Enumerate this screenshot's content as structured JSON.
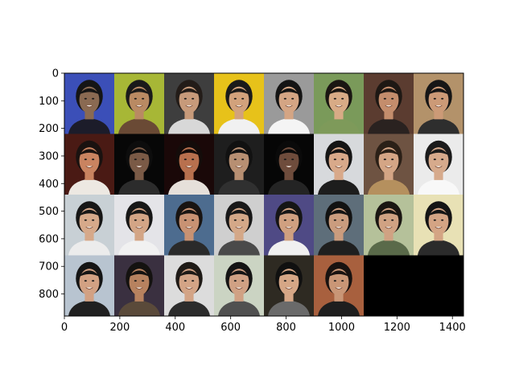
{
  "chart_data": {
    "type": "image",
    "title": "",
    "xlabel": "",
    "ylabel": "",
    "xlim": [
      0,
      1440
    ],
    "ylim": [
      880,
      0
    ],
    "x_ticks": [
      0,
      200,
      400,
      600,
      800,
      1000,
      1200,
      1400
    ],
    "y_ticks": [
      0,
      100,
      200,
      300,
      400,
      500,
      600,
      700,
      800
    ],
    "grid": {
      "rows": 4,
      "cols": 8,
      "tile_width": 180,
      "tile_height": 220,
      "filled_tiles": 30,
      "empty_fill": "#000000"
    },
    "tiles": [
      {
        "row": 0,
        "col": 0,
        "bg": "#3b4fb8",
        "face": "#8a6a52",
        "hair": "#151515",
        "shirt": "#1c1c2a"
      },
      {
        "row": 0,
        "col": 1,
        "bg": "#a7b736",
        "face": "#b98a63",
        "hair": "#1a1a1a",
        "shirt": "#6a4a35"
      },
      {
        "row": 0,
        "col": 2,
        "bg": "#3e3e3e",
        "face": "#c79a7a",
        "hair": "#231c18",
        "shirt": "#d8d8d8"
      },
      {
        "row": 0,
        "col": 3,
        "bg": "#e7c21a",
        "face": "#d2a27c",
        "hair": "#1a1a1a",
        "shirt": "#f1f1f1"
      },
      {
        "row": 0,
        "col": 4,
        "bg": "#9a9a9a",
        "face": "#d4a584",
        "hair": "#141414",
        "shirt": "#f4f4f4"
      },
      {
        "row": 0,
        "col": 5,
        "bg": "#7a9a5a",
        "face": "#d8ab86",
        "hair": "#1a1612",
        "shirt": "#7e9a5a"
      },
      {
        "row": 0,
        "col": 6,
        "bg": "#5b3c30",
        "face": "#c48d6c",
        "hair": "#1e1814",
        "shirt": "#2a2220"
      },
      {
        "row": 0,
        "col": 7,
        "bg": "#b3926a",
        "face": "#cc9a77",
        "hair": "#161616",
        "shirt": "#2e2e2e"
      },
      {
        "row": 1,
        "col": 0,
        "bg": "#4a1a14",
        "face": "#c98360",
        "hair": "#1a1210",
        "shirt": "#ede8e2"
      },
      {
        "row": 1,
        "col": 1,
        "bg": "#070707",
        "face": "#7a5a46",
        "hair": "#0d0d0d",
        "shirt": "#2c2c2c"
      },
      {
        "row": 1,
        "col": 2,
        "bg": "#1a0808",
        "face": "#b8704e",
        "hair": "#140c0a",
        "shirt": "#e6e0da"
      },
      {
        "row": 1,
        "col": 3,
        "bg": "#1e1e1e",
        "face": "#b78f72",
        "hair": "#111111",
        "shirt": "#303030"
      },
      {
        "row": 1,
        "col": 4,
        "bg": "#060606",
        "face": "#6e4c3c",
        "hair": "#0a0a0a",
        "shirt": "#242424"
      },
      {
        "row": 1,
        "col": 5,
        "bg": "#d7d9dc",
        "face": "#d8a98a",
        "hair": "#151515",
        "shirt": "#1d1d1d"
      },
      {
        "row": 1,
        "col": 6,
        "bg": "#6e5342",
        "face": "#d4a585",
        "hair": "#2b2017",
        "shirt": "#b5905e"
      },
      {
        "row": 1,
        "col": 7,
        "bg": "#ebebeb",
        "face": "#d6aa8c",
        "hair": "#1b1b1b",
        "shirt": "#f8f8f8"
      },
      {
        "row": 2,
        "col": 0,
        "bg": "#c8d0d5",
        "face": "#d6a98a",
        "hair": "#161616",
        "shirt": "#ececec"
      },
      {
        "row": 2,
        "col": 1,
        "bg": "#e4e4e8",
        "face": "#d3a586",
        "hair": "#171717",
        "shirt": "#f1f1f1"
      },
      {
        "row": 2,
        "col": 2,
        "bg": "#4d6c8f",
        "face": "#c89273",
        "hair": "#181412",
        "shirt": "#2a2a2a"
      },
      {
        "row": 2,
        "col": 3,
        "bg": "#cfcfcf",
        "face": "#d4a888",
        "hair": "#181818",
        "shirt": "#4a4a4a"
      },
      {
        "row": 2,
        "col": 4,
        "bg": "#4f4a85",
        "face": "#d0a080",
        "hair": "#151515",
        "shirt": "#f0f0f0"
      },
      {
        "row": 2,
        "col": 5,
        "bg": "#5e6e7a",
        "face": "#ca9c7e",
        "hair": "#121212",
        "shirt": "#1f1f1f"
      },
      {
        "row": 2,
        "col": 6,
        "bg": "#b5c19a",
        "face": "#d0a283",
        "hair": "#1a1612",
        "shirt": "#5a6a4a"
      },
      {
        "row": 2,
        "col": 7,
        "bg": "#e8e1b5",
        "face": "#d4a484",
        "hair": "#141414",
        "shirt": "#2b2b2b"
      },
      {
        "row": 3,
        "col": 0,
        "bg": "#b8c4d0",
        "face": "#d2a183",
        "hair": "#151515",
        "shirt": "#202020"
      },
      {
        "row": 3,
        "col": 1,
        "bg": "#3a3040",
        "face": "#b7825f",
        "hair": "#141210",
        "shirt": "#5a4a3a"
      },
      {
        "row": 3,
        "col": 2,
        "bg": "#dcdcdc",
        "face": "#d3a486",
        "hair": "#1e1a16",
        "shirt": "#2c2c2c"
      },
      {
        "row": 3,
        "col": 3,
        "bg": "#cbd4c3",
        "face": "#d0a184",
        "hair": "#141414",
        "shirt": "#505050"
      },
      {
        "row": 3,
        "col": 4,
        "bg": "#2e2a22",
        "face": "#d5a686",
        "hair": "#101010",
        "shirt": "#6a6a6a"
      },
      {
        "row": 3,
        "col": 5,
        "bg": "#a8603e",
        "face": "#c99676",
        "hair": "#181210",
        "shirt": "#1e1e1e"
      }
    ]
  }
}
